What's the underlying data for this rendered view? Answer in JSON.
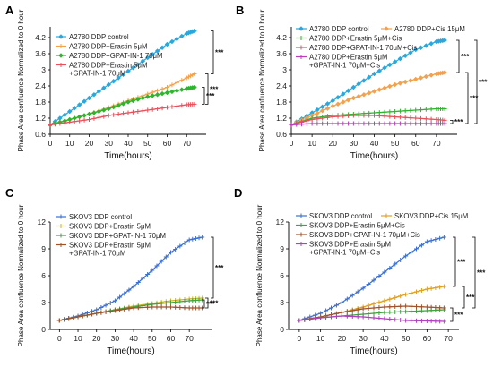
{
  "chart_data": [
    {
      "panel": "A",
      "type": "line",
      "xlabel": "Time(hours)",
      "ylabel": "Phase Area confluence Normalized to 0 hour",
      "xlim": [
        0,
        80
      ],
      "ylim": [
        0.6,
        4.6
      ],
      "xticks": [
        0,
        10,
        20,
        30,
        40,
        50,
        60,
        70
      ],
      "yticks": [
        0.6,
        1.2,
        1.8,
        2.4,
        3.0,
        3.6,
        4.2
      ],
      "x": [
        0,
        10,
        20,
        30,
        40,
        50,
        60,
        70,
        74
      ],
      "series": [
        {
          "name": "A2780 DDP control",
          "color": "#2aa7dc",
          "marker": "diamond",
          "values": [
            0.95,
            1.45,
            1.95,
            2.45,
            2.95,
            3.45,
            3.95,
            4.35,
            4.45
          ]
        },
        {
          "name": "A2780 DDP+Erastin 5μM",
          "color": "#f5a04a",
          "marker": "plus",
          "values": [
            0.95,
            1.15,
            1.35,
            1.6,
            1.85,
            2.1,
            2.35,
            2.7,
            2.85
          ]
        },
        {
          "name": "A2780 DDP+GPAT-IN-1 70μM",
          "color": "#2db52d",
          "marker": "diamond",
          "values": [
            0.95,
            1.15,
            1.35,
            1.55,
            1.8,
            2.0,
            2.15,
            2.3,
            2.35
          ]
        },
        {
          "name": "A2780 DDP+Erastin 5μM +GPAT-IN-1 70μM",
          "color": "#e8505b",
          "marker": "plus",
          "values": [
            0.95,
            1.05,
            1.15,
            1.3,
            1.4,
            1.5,
            1.6,
            1.7,
            1.72
          ]
        }
      ],
      "annotations": [
        "***",
        "***",
        "***"
      ]
    },
    {
      "panel": "B",
      "type": "line",
      "xlabel": "Time(hours)",
      "ylabel": "Phase Area confluence Normalized to 0 hour",
      "xlim": [
        0,
        80
      ],
      "ylim": [
        0.6,
        4.6
      ],
      "xticks": [
        0,
        10,
        20,
        30,
        40,
        50,
        60,
        70
      ],
      "yticks": [
        0.6,
        1.2,
        1.8,
        2.4,
        3.0,
        3.6,
        4.2
      ],
      "x": [
        0,
        10,
        20,
        30,
        40,
        50,
        60,
        70,
        74
      ],
      "series": [
        {
          "name": "A2780 DDP control",
          "color": "#2aa7dc",
          "marker": "diamond",
          "values": [
            0.95,
            1.4,
            1.85,
            2.35,
            2.85,
            3.3,
            3.75,
            4.05,
            4.1
          ]
        },
        {
          "name": "A2780 DDP+Cis 15μM",
          "color": "#f5a04a",
          "marker": "diamond",
          "values": [
            0.95,
            1.3,
            1.65,
            1.95,
            2.2,
            2.45,
            2.65,
            2.85,
            2.9
          ]
        },
        {
          "name": "A2780 DDP+Erastin 5μM+Cis",
          "color": "#2db52d",
          "marker": "plus",
          "values": [
            0.95,
            1.2,
            1.3,
            1.35,
            1.4,
            1.45,
            1.5,
            1.55,
            1.55
          ]
        },
        {
          "name": "A2780 DDP+GPAT-IN-1 70μM+Cis",
          "color": "#e8505b",
          "marker": "plus",
          "values": [
            0.95,
            1.15,
            1.25,
            1.3,
            1.3,
            1.25,
            1.2,
            1.15,
            1.12
          ]
        },
        {
          "name": "A2780 DDP+Erastin 5μM +GPAT-IN-1 70μM+Cis",
          "color": "#c03ac0",
          "marker": "plus",
          "values": [
            0.95,
            1.0,
            1.0,
            1.0,
            1.0,
            1.0,
            1.0,
            1.0,
            1.0
          ]
        }
      ],
      "annotations": [
        "***",
        "***",
        "***",
        "***"
      ]
    },
    {
      "panel": "C",
      "type": "line",
      "xlabel": "Time(hours)",
      "ylabel": "Phase Area confluence Normalized to 0 hour",
      "xlim": [
        -5,
        82
      ],
      "ylim": [
        0,
        12
      ],
      "xticks": [
        0,
        10,
        20,
        30,
        40,
        50,
        60,
        70
      ],
      "yticks": [
        0,
        3,
        6,
        9,
        12
      ],
      "x": [
        0,
        10,
        20,
        30,
        40,
        50,
        60,
        70,
        77
      ],
      "series": [
        {
          "name": "SKOV3 DDP control",
          "color": "#3b6fd4",
          "marker": "plus",
          "values": [
            1.0,
            1.5,
            2.2,
            3.2,
            4.8,
            6.6,
            8.6,
            10.0,
            10.3
          ]
        },
        {
          "name": "SKOV3 DDP+Erastin 5μM",
          "color": "#d4b32a",
          "marker": "plus",
          "values": [
            1.0,
            1.4,
            1.8,
            2.2,
            2.6,
            2.9,
            3.2,
            3.4,
            3.5
          ]
        },
        {
          "name": "SKOV3 DDP+GPAT-IN-1 70μM",
          "color": "#3ea43e",
          "marker": "plus",
          "values": [
            1.0,
            1.4,
            1.8,
            2.2,
            2.5,
            2.8,
            3.0,
            3.2,
            3.3
          ]
        },
        {
          "name": "SKOV3 DDP+Erastin 5μM +GPAT-IN-1 70μM",
          "color": "#a0522d",
          "marker": "plus",
          "values": [
            1.0,
            1.4,
            1.8,
            2.1,
            2.4,
            2.5,
            2.5,
            2.4,
            2.4
          ]
        }
      ],
      "annotations": [
        "***",
        "***",
        "***"
      ]
    },
    {
      "panel": "D",
      "type": "line",
      "xlabel": "Time(hours)",
      "ylabel": "Phase Area confluence Normalized to 0 hour",
      "xlim": [
        -5,
        75
      ],
      "ylim": [
        0,
        12
      ],
      "xticks": [
        0,
        10,
        20,
        30,
        40,
        50,
        60,
        70
      ],
      "yticks": [
        0,
        3,
        6,
        9,
        12
      ],
      "x": [
        0,
        10,
        20,
        30,
        40,
        50,
        60,
        68
      ],
      "series": [
        {
          "name": "SKOV3 DDP control",
          "color": "#3b6fd4",
          "marker": "plus",
          "values": [
            1.0,
            1.8,
            3.0,
            4.6,
            6.4,
            8.2,
            9.8,
            10.3
          ]
        },
        {
          "name": "SKOV3 DDP+Cis 15μM",
          "color": "#e0a020",
          "marker": "plus",
          "values": [
            1.0,
            1.4,
            1.9,
            2.5,
            3.2,
            3.9,
            4.5,
            4.8
          ]
        },
        {
          "name": "SKOV3 DDP+Erastin 5μM+Cis",
          "color": "#3ea43e",
          "marker": "plus",
          "values": [
            1.0,
            1.3,
            1.5,
            1.7,
            1.9,
            2.0,
            2.1,
            2.2
          ]
        },
        {
          "name": "SKOV3 DDP+GPAT-IN-1 70μM+Cis",
          "color": "#a0522d",
          "marker": "plus",
          "values": [
            1.0,
            1.4,
            1.9,
            2.3,
            2.5,
            2.6,
            2.5,
            2.4
          ]
        },
        {
          "name": "SKOV3 DDP+Erastin 5μM +GPAT-IN-1 70μM+Cis",
          "color": "#b040c0",
          "marker": "plus",
          "values": [
            1.0,
            1.3,
            1.5,
            1.4,
            1.2,
            1.0,
            0.95,
            0.9
          ]
        }
      ],
      "annotations": [
        "***",
        "***",
        "***",
        "***"
      ]
    }
  ]
}
